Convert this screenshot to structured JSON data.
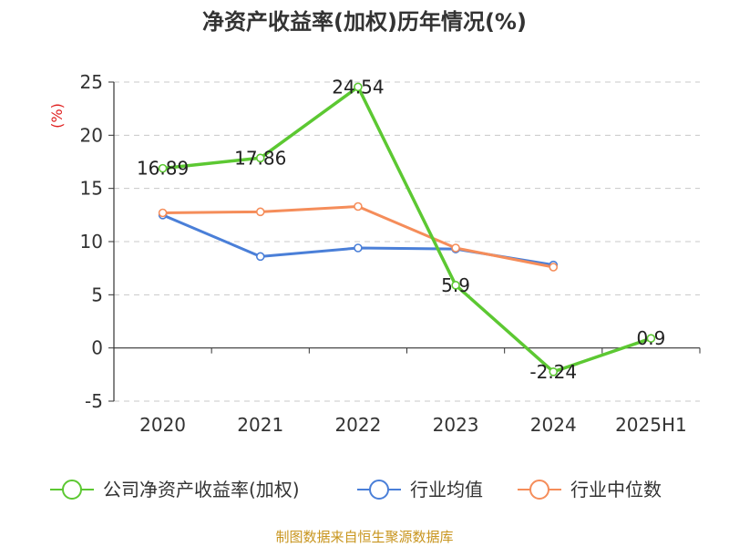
{
  "chart_data": {
    "type": "line",
    "title": "净资产收益率(加权)历年情况(%)",
    "ylabel": "(%)",
    "categories": [
      "2020",
      "2021",
      "2022",
      "2023",
      "2024",
      "2025H1"
    ],
    "yticks": [
      "-5",
      "0",
      "5",
      "10",
      "15",
      "20",
      "25"
    ],
    "ylim": [
      -5,
      25
    ],
    "grid": true,
    "legend_position": "bottom",
    "series": [
      {
        "name": "公司净资产收益率(加权)",
        "color": "#5cc832",
        "values": [
          16.89,
          17.86,
          24.54,
          5.9,
          -2.24,
          0.9
        ],
        "labels": [
          "16.89",
          "17.86",
          "24.54",
          "5.9",
          "-2.24",
          "0.9"
        ]
      },
      {
        "name": "行业均值",
        "color": "#4a7fd8",
        "values": [
          12.5,
          8.6,
          9.4,
          9.3,
          7.8,
          null
        ]
      },
      {
        "name": "行业中位数",
        "color": "#f58d5a",
        "values": [
          12.7,
          12.8,
          13.3,
          9.4,
          7.6,
          null
        ]
      }
    ]
  },
  "source": "制图数据来自恒生聚源数据库"
}
